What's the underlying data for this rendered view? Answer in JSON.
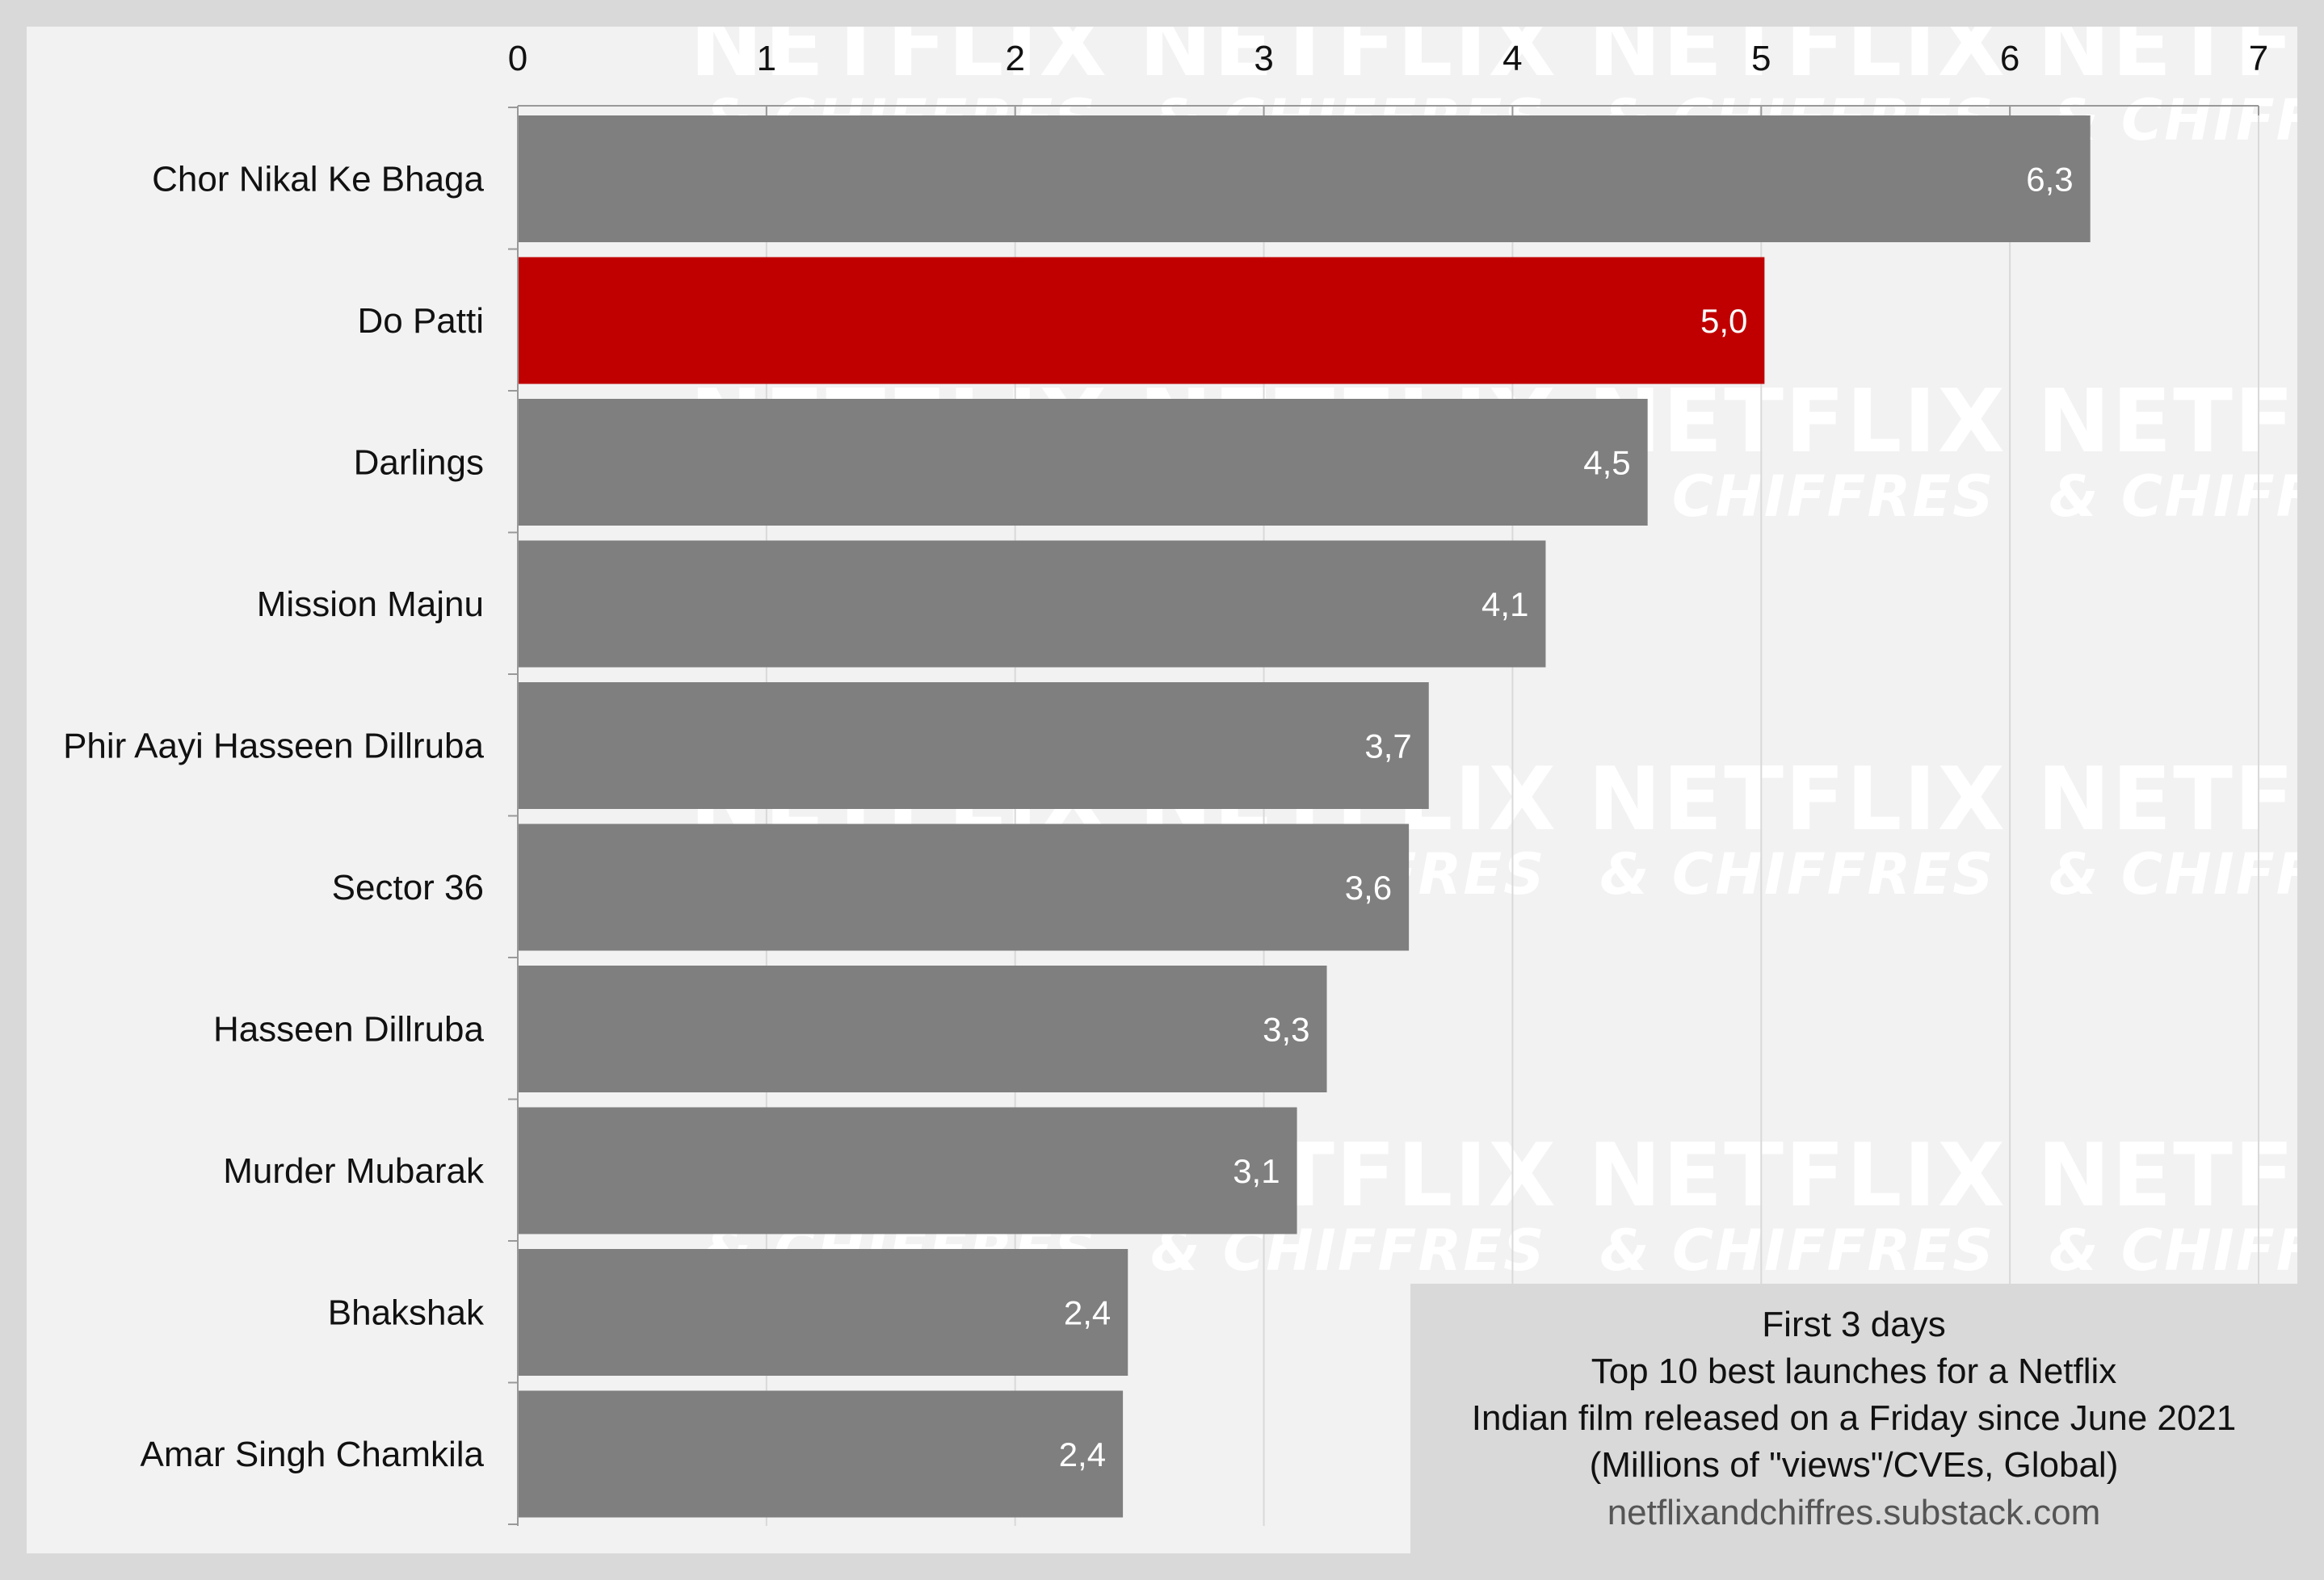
{
  "chart_data": {
    "type": "bar",
    "orientation": "horizontal",
    "categories": [
      "Chor Nikal Ke Bhaga",
      "Do Patti",
      "Darlings",
      "Mission Majnu",
      "Phir Aayi Hasseen Dillruba",
      "Sector 36",
      "Hasseen Dillruba",
      "Murder Mubarak",
      "Bhakshak",
      "Amar Singh Chamkila"
    ],
    "values": [
      6.32,
      5.01,
      4.54,
      4.13,
      3.66,
      3.58,
      3.25,
      3.13,
      2.45,
      2.43
    ],
    "value_labels": [
      "6,3",
      "5,0",
      "4,5",
      "4,1",
      "3,7",
      "3,6",
      "3,3",
      "3,1",
      "2,4",
      "2,4"
    ],
    "highlight_index": 1,
    "xlim": [
      0,
      7
    ],
    "xticks": [
      "0",
      "1",
      "2",
      "3",
      "4",
      "5",
      "6",
      "7"
    ],
    "x_axis_position": "top",
    "grid": true,
    "colors": {
      "bar": "#7f7f7f",
      "highlight": "#c00000",
      "grid": "#d9d9d9"
    }
  },
  "info_box": {
    "lines": [
      "First 3 days",
      "Top 10 best launches for a Netflix",
      "Indian film released on a Friday since June 2021",
      "(Millions of \"views\"/CVEs, Global)"
    ],
    "source": "netflixandchiffres.substack.com"
  },
  "watermark": {
    "line1": "NETFLIX",
    "line2": "& CHIFFRES"
  }
}
